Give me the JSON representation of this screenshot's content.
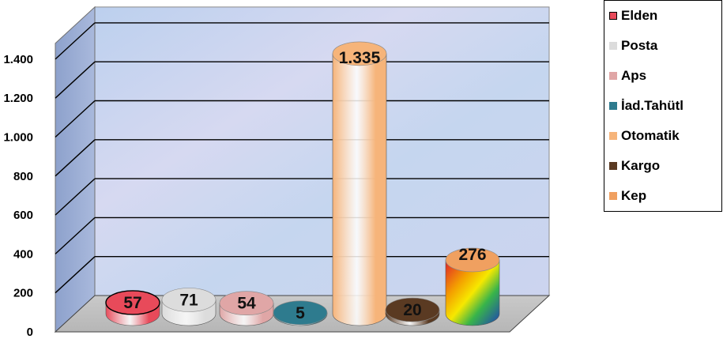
{
  "chart_data": {
    "type": "bar",
    "style": "3d-cylinder",
    "title": "",
    "xlabel": "",
    "ylabel": "",
    "ylim": [
      0,
      1400
    ],
    "y_ticks": [
      0,
      200,
      400,
      600,
      800,
      1000,
      1200,
      1400
    ],
    "y_tick_labels": [
      "0",
      "200",
      "400",
      "600",
      "800",
      "1.000",
      "1.200",
      "1.400"
    ],
    "grid": true,
    "legend_position": "top-right",
    "categories": [
      "Elden",
      "Posta",
      "Aps",
      "İad.Tahütl",
      "Otomatik",
      "Kargo",
      "Kep"
    ],
    "values": [
      57,
      71,
      54,
      5,
      1335,
      20,
      276
    ],
    "data_labels": [
      "57",
      "71",
      "54",
      "5",
      "1.335",
      "20",
      "276"
    ],
    "colors": [
      "#e84a5a",
      "#dcdcdc",
      "#e0a6a6",
      "#2e7b8e",
      "#f6b47a",
      "#5a3a22",
      "#f0a060"
    ]
  }
}
